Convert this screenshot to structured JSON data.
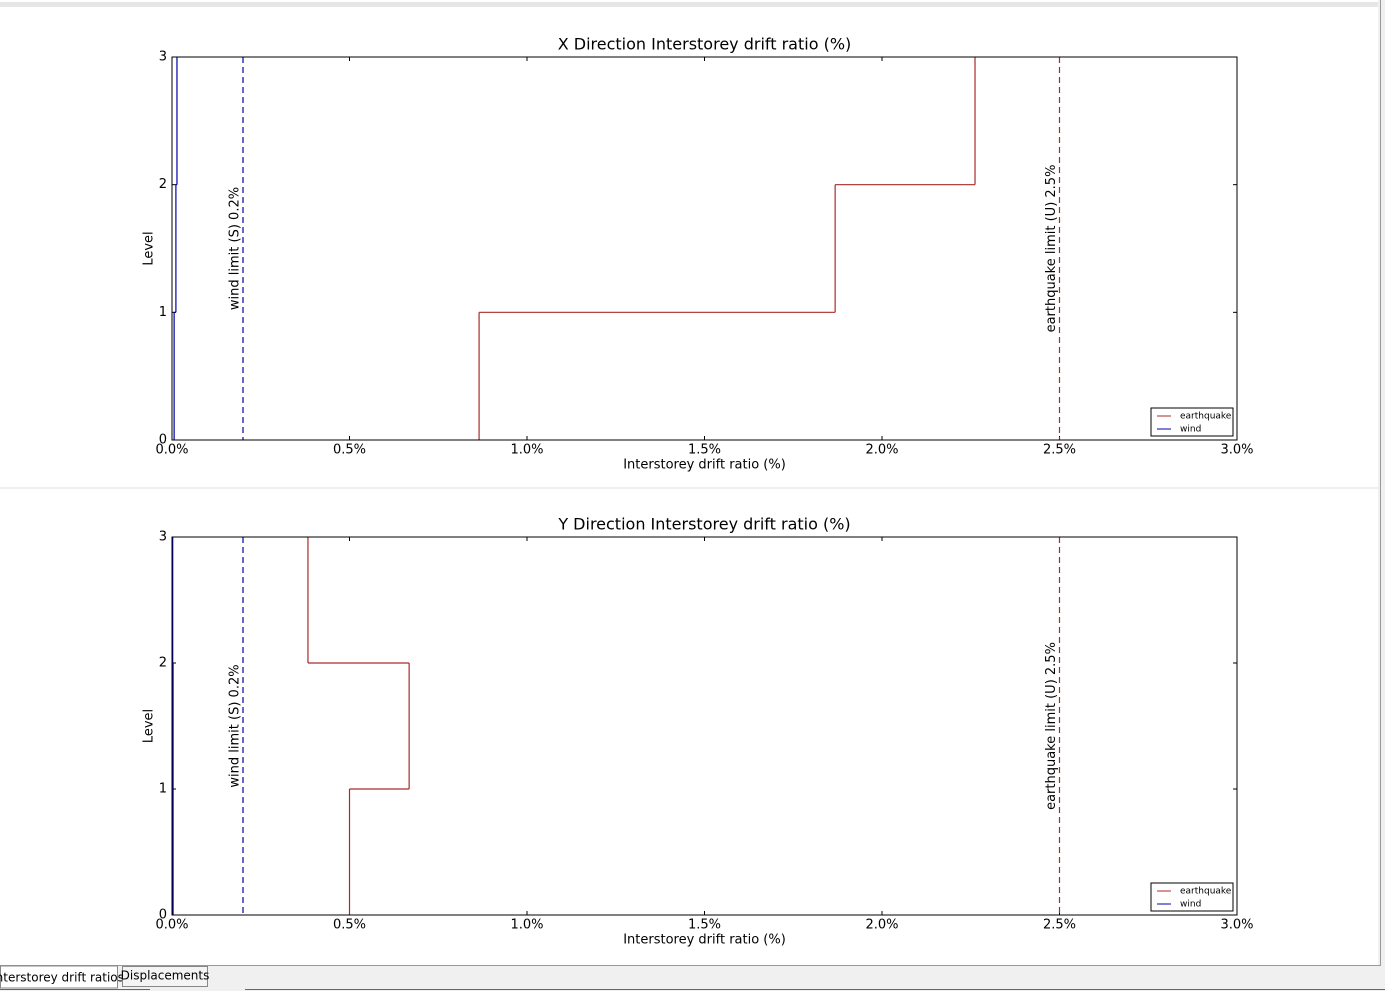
{
  "chart_data": [
    {
      "type": "step",
      "title": "X Direction Interstorey drift ratio (%)",
      "xlabel": "Interstorey drift ratio (%)",
      "ylabel": "Level",
      "xlim": [
        0,
        3
      ],
      "ylim": [
        0,
        3
      ],
      "xticks": [
        {
          "value": 0,
          "label": "0.0%"
        },
        {
          "value": 0.5,
          "label": "0.5%"
        },
        {
          "value": 1,
          "label": "1.0%"
        },
        {
          "value": 1.5,
          "label": "1.5%"
        },
        {
          "value": 2,
          "label": "2.0%"
        },
        {
          "value": 2.5,
          "label": "2.5%"
        },
        {
          "value": 3,
          "label": "3.0%"
        }
      ],
      "yticks": [
        0,
        1,
        2,
        3
      ],
      "series": [
        {
          "name": "earthquake",
          "color": "#aa2a2a",
          "values": [
            0.865,
            1.868,
            2.262
          ]
        },
        {
          "name": "wind",
          "color": "#0000aa",
          "values": [
            0.006,
            0.011,
            0.014
          ]
        }
      ],
      "limits": [
        {
          "value": 0.2,
          "label": "wind limit (S) 0.2%",
          "color": "#0000aa"
        },
        {
          "value": 2.5,
          "label": "earthquake limit (U) 2.5%",
          "color": "#aa2a2a"
        }
      ],
      "legend": "lower right"
    },
    {
      "type": "step",
      "title": "Y Direction Interstorey drift ratio (%)",
      "xlabel": "Interstorey drift ratio (%)",
      "ylabel": "Level",
      "xlim": [
        0,
        3
      ],
      "ylim": [
        0,
        3
      ],
      "xticks": [
        {
          "value": 0,
          "label": "0.0%"
        },
        {
          "value": 0.5,
          "label": "0.5%"
        },
        {
          "value": 1,
          "label": "1.0%"
        },
        {
          "value": 1.5,
          "label": "1.5%"
        },
        {
          "value": 2,
          "label": "2.0%"
        },
        {
          "value": 2.5,
          "label": "2.5%"
        },
        {
          "value": 3,
          "label": "3.0%"
        }
      ],
      "yticks": [
        0,
        1,
        2,
        3
      ],
      "series": [
        {
          "name": "earthquake",
          "color": "#aa2a2a",
          "values": [
            0.5,
            0.668,
            0.383
          ]
        },
        {
          "name": "wind",
          "color": "#0000aa",
          "values": [
            0.003,
            0.003,
            0.002
          ]
        }
      ],
      "limits": [
        {
          "value": 0.2,
          "label": "wind limit (S) 0.2%",
          "color": "#0000aa"
        },
        {
          "value": 2.5,
          "label": "earthquake limit (U) 2.5%",
          "color": "#aa2a2a"
        }
      ],
      "legend": "lower right"
    }
  ],
  "tabs": [
    "Interstorey drift ratios",
    "Displacements"
  ]
}
